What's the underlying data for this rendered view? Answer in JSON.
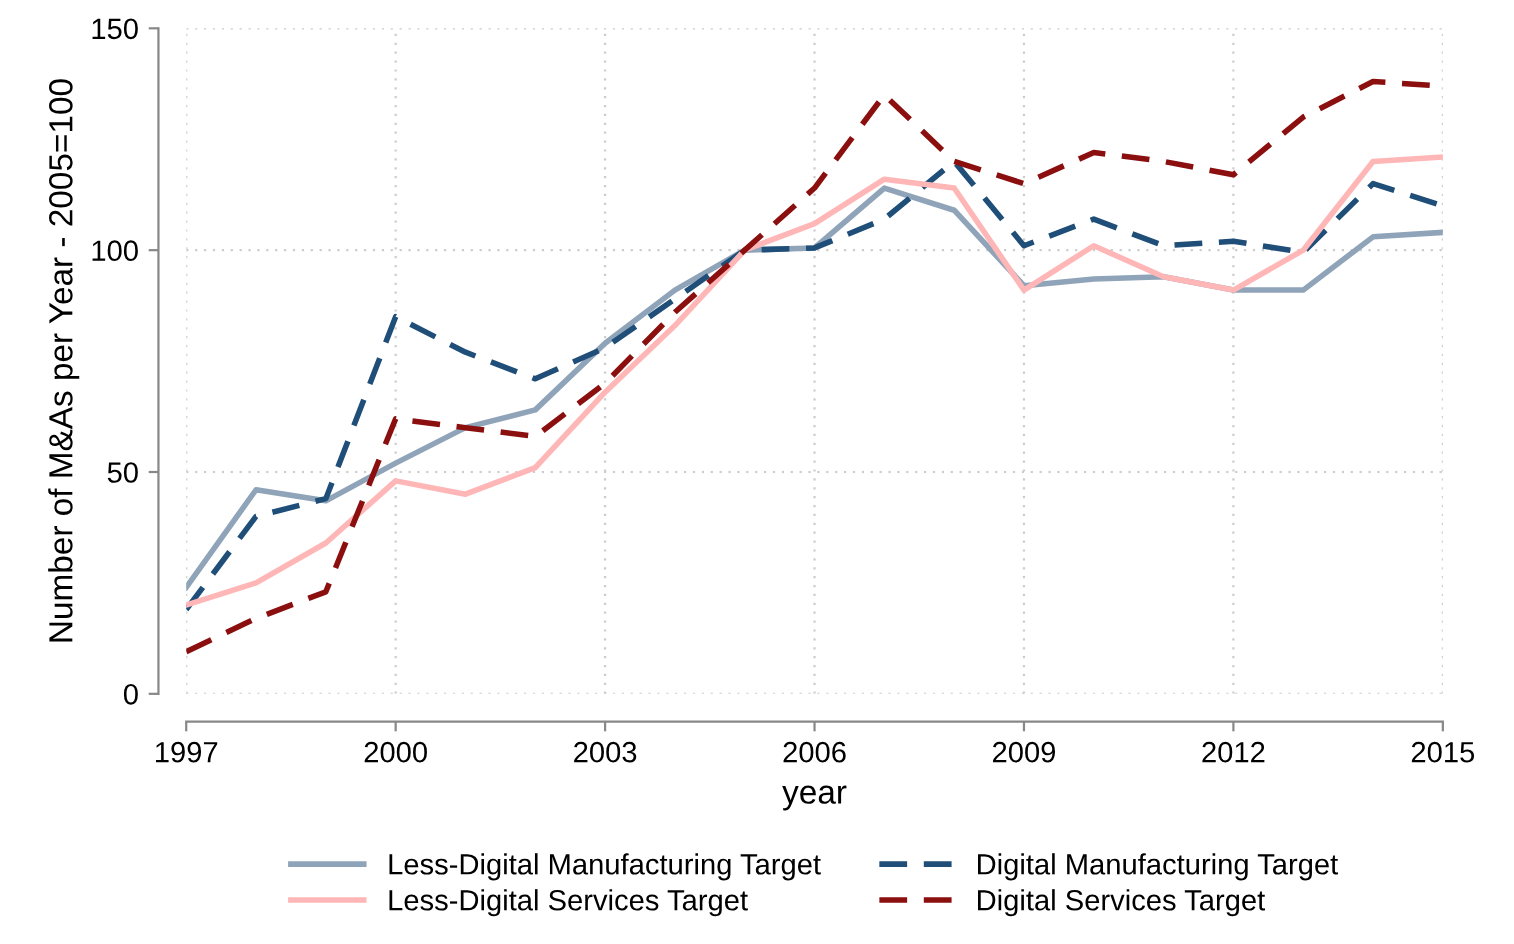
{
  "chart_data": {
    "type": "line",
    "xlabel": "year",
    "ylabel": "Number of M&As per Year - 2005=100",
    "x": [
      1997,
      1998,
      1999,
      2000,
      2001,
      2002,
      2003,
      2004,
      2005,
      2006,
      2007,
      2008,
      2009,
      2010,
      2011,
      2012,
      2013,
      2014,
      2015
    ],
    "series": [
      {
        "name": "Less-Digital Manufacturing Target",
        "color": "#90a4b9",
        "line_style": "solid",
        "values": [
          24,
          46,
          43.5,
          52,
          60,
          64,
          79,
          91,
          100,
          100.5,
          114,
          109,
          92,
          93.5,
          94,
          91,
          91,
          103,
          104
        ]
      },
      {
        "name": "Digital Manufacturing Target",
        "color": "#1f4e79",
        "line_style": "dashed",
        "values": [
          19,
          40,
          44,
          85,
          77,
          71,
          78,
          89,
          100,
          100.5,
          107,
          120,
          101,
          107,
          101,
          102,
          99.5,
          115,
          110
        ]
      },
      {
        "name": "Less-Digital Services Target",
        "color": "#ffb6b6",
        "line_style": "solid",
        "values": [
          20,
          25,
          34,
          48,
          45,
          51,
          68,
          83,
          100,
          106,
          116,
          114,
          91,
          101,
          94,
          91,
          100,
          120,
          121
        ]
      },
      {
        "name": "Digital Services Target",
        "color": "#8b0f0f",
        "line_style": "dashed",
        "values": [
          9.5,
          17,
          23,
          62,
          60,
          58,
          70,
          86,
          100,
          114,
          135,
          120,
          115,
          122,
          120,
          117,
          130,
          138,
          137
        ]
      }
    ],
    "xlim": [
      1997,
      2015
    ],
    "xticks": [
      1997,
      2000,
      2003,
      2006,
      2009,
      2012,
      2015
    ],
    "ylim": [
      0,
      150
    ],
    "yticks": [
      0,
      50,
      100,
      150
    ],
    "grid": true,
    "legend": "bottom",
    "marker": "none"
  }
}
